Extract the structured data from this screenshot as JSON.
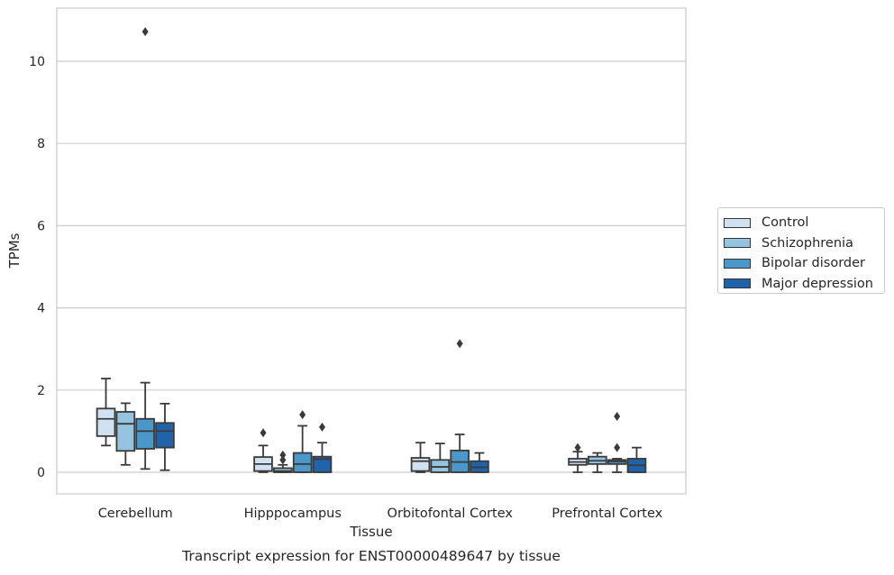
{
  "chart_data": {
    "type": "box",
    "title": "Transcript expression for ENST00000489647 by tissue",
    "xlabel": "Tissue",
    "ylabel": "TPMs",
    "ylim": [
      -0.5,
      11.3
    ],
    "yticks": [
      0,
      2,
      4,
      6,
      8,
      10
    ],
    "grid": "horizontal",
    "legend_position": "right",
    "categories": [
      "Cerebellum",
      "Hipppocampus",
      "Orbitofontal Cortex",
      "Prefrontal Cortex"
    ],
    "series": [
      {
        "name": "Control",
        "color": "#d0e1f2",
        "boxes": [
          {
            "whisker_low": 0.65,
            "q1": 0.88,
            "median": 1.3,
            "q3": 1.55,
            "whisker_high": 2.28,
            "outliers": []
          },
          {
            "whisker_low": 0.0,
            "q1": 0.03,
            "median": 0.2,
            "q3": 0.37,
            "whisker_high": 0.65,
            "outliers": [
              0.96
            ]
          },
          {
            "whisker_low": 0.0,
            "q1": 0.03,
            "median": 0.27,
            "q3": 0.35,
            "whisker_high": 0.72,
            "outliers": []
          },
          {
            "whisker_low": 0.0,
            "q1": 0.18,
            "median": 0.25,
            "q3": 0.33,
            "whisker_high": 0.5,
            "outliers": [
              0.6
            ]
          }
        ]
      },
      {
        "name": "Schizophrenia",
        "color": "#94c4df",
        "boxes": [
          {
            "whisker_low": 0.18,
            "q1": 0.52,
            "median": 1.18,
            "q3": 1.47,
            "whisker_high": 1.68,
            "outliers": []
          },
          {
            "whisker_low": 0.0,
            "q1": 0.0,
            "median": 0.03,
            "q3": 0.1,
            "whisker_high": 0.18,
            "outliers": [
              0.3,
              0.42
            ]
          },
          {
            "whisker_low": 0.0,
            "q1": 0.0,
            "median": 0.13,
            "q3": 0.3,
            "whisker_high": 0.7,
            "outliers": []
          },
          {
            "whisker_low": 0.0,
            "q1": 0.2,
            "median": 0.28,
            "q3": 0.38,
            "whisker_high": 0.47,
            "outliers": []
          }
        ]
      },
      {
        "name": "Bipolar disorder",
        "color": "#4a98c9",
        "boxes": [
          {
            "whisker_low": 0.08,
            "q1": 0.57,
            "median": 1.0,
            "q3": 1.3,
            "whisker_high": 2.18,
            "outliers": [
              10.72
            ]
          },
          {
            "whisker_low": 0.0,
            "q1": 0.0,
            "median": 0.2,
            "q3": 0.47,
            "whisker_high": 1.13,
            "outliers": [
              1.4
            ]
          },
          {
            "whisker_low": 0.0,
            "q1": 0.0,
            "median": 0.25,
            "q3": 0.53,
            "whisker_high": 0.92,
            "outliers": [
              3.13
            ]
          },
          {
            "whisker_low": 0.0,
            "q1": 0.2,
            "median": 0.26,
            "q3": 0.3,
            "whisker_high": 0.33,
            "outliers": [
              0.6,
              1.36
            ]
          }
        ]
      },
      {
        "name": "Major depression",
        "color": "#2163aa",
        "boxes": [
          {
            "whisker_low": 0.05,
            "q1": 0.6,
            "median": 1.0,
            "q3": 1.2,
            "whisker_high": 1.67,
            "outliers": []
          },
          {
            "whisker_low": 0.0,
            "q1": 0.0,
            "median": 0.32,
            "q3": 0.38,
            "whisker_high": 0.72,
            "outliers": [
              1.1
            ]
          },
          {
            "whisker_low": 0.0,
            "q1": 0.0,
            "median": 0.12,
            "q3": 0.27,
            "whisker_high": 0.47,
            "outliers": []
          },
          {
            "whisker_low": 0.0,
            "q1": 0.0,
            "median": 0.17,
            "q3": 0.33,
            "whisker_high": 0.6,
            "outliers": []
          }
        ]
      }
    ]
  }
}
